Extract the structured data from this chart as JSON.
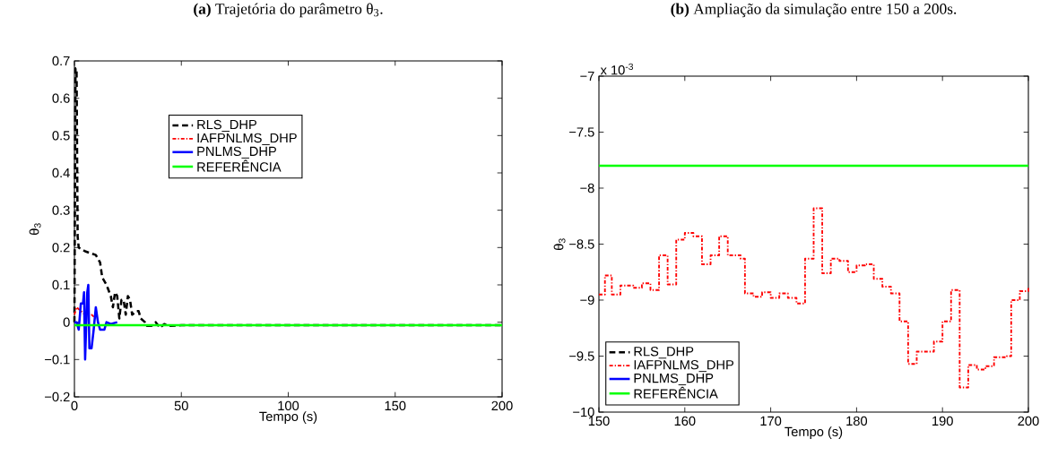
{
  "chart_data": [
    {
      "type": "line",
      "title": "**(a)** Trajetória do parâmetro θ$_{3}$.",
      "xlabel": "Tempo (s)",
      "ylabel": "θ$_{3}$",
      "xlim": [
        0,
        200
      ],
      "ylim": [
        -0.2,
        0.7
      ],
      "xticks": [
        0,
        50,
        100,
        150,
        200
      ],
      "yticks": [
        {
          "value": -0.2,
          "label": "−0.2"
        },
        {
          "value": -0.1,
          "label": "−0.1"
        },
        0,
        0.1,
        0.2,
        0.3,
        0.4,
        0.5,
        0.6,
        0.7
      ],
      "legend": "top",
      "grid": false,
      "marker": "none",
      "series": [
        {
          "name": "RLS_DHP",
          "color": "#000000",
          "line_style": "dashed",
          "x": [
            0,
            0.5,
            1,
            1.5,
            2,
            5,
            10,
            12,
            13,
            15,
            17,
            18,
            19,
            20,
            21,
            22,
            23,
            24,
            25,
            26,
            27,
            29,
            30,
            31,
            33,
            34,
            36,
            38,
            40,
            42,
            45,
            50,
            200
          ],
          "values": [
            0,
            0.68,
            0.68,
            0.23,
            0.2,
            0.19,
            0.18,
            0.16,
            0.12,
            0.1,
            0.07,
            0.04,
            0.08,
            0.07,
            0.01,
            0.06,
            0.06,
            0.02,
            0.07,
            0.06,
            0.02,
            0.03,
            0.03,
            0.01,
            0,
            -0.01,
            -0.01,
            0,
            -0.015,
            -0.005,
            -0.01,
            -0.008,
            -0.008
          ]
        },
        {
          "name": "IAFPNLMS_DHP",
          "color": "#ff0000",
          "line_style": "dashdot",
          "x": [
            0,
            1,
            3,
            5,
            8,
            10
          ],
          "values": [
            0.02,
            0.04,
            0.03,
            0.02,
            0.02,
            0.01
          ]
        },
        {
          "name": "PNLMS_DHP",
          "color": "#0000ff",
          "line_style": "solid",
          "x": [
            0,
            1,
            2,
            3,
            4,
            4.5,
            5,
            6,
            6.5,
            7,
            8,
            9,
            10,
            11,
            12,
            14,
            15,
            17,
            20
          ],
          "values": [
            0,
            0,
            -0.02,
            0.05,
            0.05,
            0.08,
            -0.1,
            0.08,
            0.1,
            -0.07,
            -0.07,
            -0.02,
            0.04,
            0,
            -0.02,
            -0.02,
            0,
            -0.005,
            0
          ]
        },
        {
          "name": "REFERÊNCIA",
          "color": "#00ff00",
          "line_style": "solid",
          "x": [
            0,
            200
          ],
          "values": [
            -0.008,
            -0.008
          ]
        }
      ]
    },
    {
      "type": "line",
      "title": "**(b)** Ampliação da simulação entre 150 a 200s.",
      "xlabel": "Tempo (s)",
      "ylabel": "θ$_{3}$",
      "annotations": [
        "x 10$^{-3}$"
      ],
      "xlim": [
        150,
        200
      ],
      "ylim": [
        -10,
        -7
      ],
      "xticks": [
        150,
        160,
        170,
        180,
        190,
        200
      ],
      "yticks": [
        {
          "value": -10,
          "label": "−10"
        },
        {
          "value": -9.5,
          "label": "−9.5"
        },
        {
          "value": -9,
          "label": "−9"
        },
        {
          "value": -8.5,
          "label": "−8.5"
        },
        {
          "value": -8,
          "label": "−8"
        },
        {
          "value": -7.5,
          "label": "−7.5"
        },
        {
          "value": -7,
          "label": "−7"
        }
      ],
      "legend": "bottom left",
      "grid": false,
      "marker": "none",
      "series": [
        {
          "name": "RLS_DHP",
          "color": "#000000",
          "line_style": "dashed",
          "values": [
            null,
            null
          ]
        },
        {
          "name": "IAFPNLMS_DHP",
          "color": "#ff0000",
          "line_style": "dashdot",
          "type": "step",
          "x": [
            150,
            150.7,
            151.5,
            152.5,
            154,
            155,
            156,
            157,
            158,
            159,
            160,
            161,
            162,
            163,
            164,
            165,
            166.5,
            167,
            168,
            169,
            170,
            171,
            172,
            173,
            174,
            175,
            176,
            177,
            178,
            179,
            180,
            181,
            182,
            183,
            184,
            185,
            186,
            187,
            189,
            190,
            191,
            192,
            193,
            194,
            195,
            196,
            197.5,
            198,
            199,
            200
          ],
          "values": [
            -8.95,
            -8.78,
            -8.95,
            -8.87,
            -8.89,
            -8.85,
            -8.91,
            -8.6,
            -8.86,
            -8.46,
            -8.4,
            -8.43,
            -8.68,
            -8.6,
            -8.43,
            -8.6,
            -8.63,
            -8.94,
            -8.97,
            -8.93,
            -8.98,
            -8.94,
            -8.98,
            -9.03,
            -8.63,
            -8.18,
            -8.76,
            -8.63,
            -8.65,
            -8.75,
            -8.69,
            -8.68,
            -8.81,
            -8.88,
            -8.94,
            -9.19,
            -9.57,
            -9.46,
            -9.37,
            -9.19,
            -8.91,
            -9.78,
            -9.58,
            -9.62,
            -9.59,
            -9.51,
            -9.5,
            -9.0,
            -8.92,
            -8.88
          ]
        },
        {
          "name": "PNLMS_DHP",
          "color": "#0000ff",
          "line_style": "solid",
          "values": [
            null,
            null
          ]
        },
        {
          "name": "REFERÊNCIA",
          "color": "#00ff00",
          "line_style": "solid",
          "x": [
            150,
            200
          ],
          "values": [
            -7.8,
            -7.8
          ]
        }
      ]
    }
  ]
}
